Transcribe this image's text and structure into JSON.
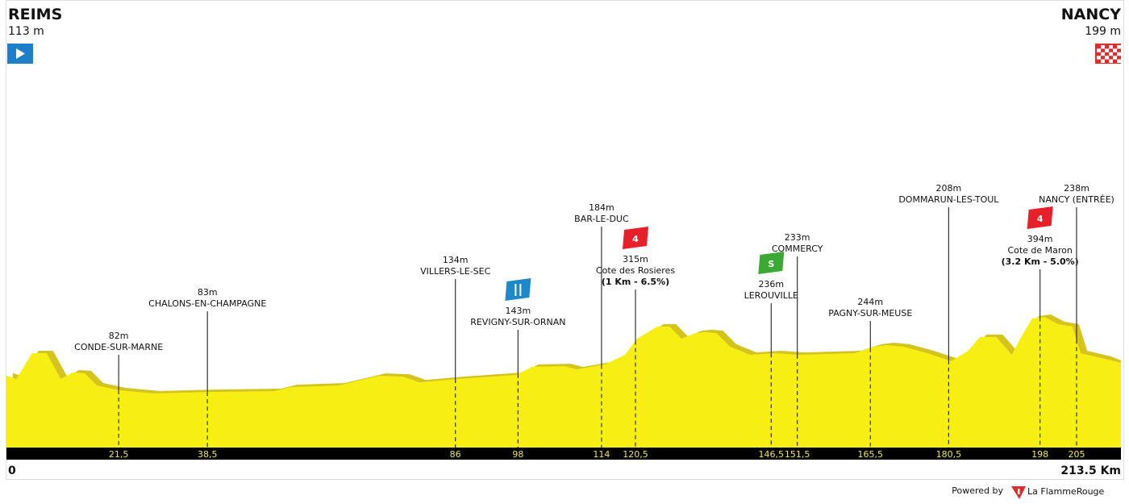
{
  "chart_data": {
    "type": "area",
    "color": "#f7ee14",
    "shadow_color": "#d6c41e",
    "xlim": [
      0,
      213.5
    ],
    "ylim": [
      -230,
      1450
    ],
    "start": {
      "name": "REIMS",
      "altitude": "113 m"
    },
    "finish": {
      "name": "NANCY",
      "altitude": "199 m"
    },
    "start_label": "0",
    "end_label": "213.5 Km",
    "profile": {
      "km": [
        0,
        1.9,
        4.9,
        7.7,
        10.4,
        12.7,
        15,
        17.3,
        21.6,
        28.1,
        38.9,
        51.3,
        54.4,
        63.6,
        71.4,
        76,
        79.1,
        86.4,
        97.6,
        100.7,
        106.9,
        109.2,
        114.6,
        118.5,
        120.8,
        124.7,
        127,
        129.3,
        132,
        134,
        136,
        138.6,
        142.4,
        147.1,
        151.7,
        162.5,
        166.4,
        168.7,
        171.8,
        176.4,
        181,
        184.2,
        186.5,
        189.6,
        192.6,
        194.2,
        196.5,
        198.8,
        201.5,
        204.2,
        205.8,
        210.4,
        213.5
      ],
      "elevation": [
        113,
        97,
        220,
        220,
        97,
        128,
        124,
        66,
        43,
        28,
        35,
        39,
        58,
        66,
        112,
        108,
        81,
        97,
        116,
        155,
        158,
        143,
        166,
        212,
        289,
        347,
        347,
        289,
        316,
        320,
        316,
        251,
        212,
        220,
        212,
        220,
        251,
        258,
        251,
        220,
        182,
        231,
        297,
        297,
        212,
        289,
        385,
        393,
        358,
        347,
        220,
        193,
        174
      ]
    },
    "waypoints": [
      {
        "km": 21.5,
        "km_label": "21,5",
        "altitude": "82m",
        "name": "CONDE-SUR-MARNE"
      },
      {
        "km": 38.5,
        "km_label": "38,5",
        "altitude": "83m",
        "name": "CHALONS-EN-CHAMPAGNE"
      },
      {
        "km": 86,
        "km_label": "86",
        "altitude": "134m",
        "name": "VILLERS-LE-SEC"
      },
      {
        "km": 98,
        "km_label": "98",
        "altitude": "143m",
        "name": "REVIGNY-SUR-ORNAN",
        "marker": {
          "kind": "feed"
        }
      },
      {
        "km": 114,
        "km_label": "114",
        "altitude": "184m",
        "name": "BAR-LE-DUC"
      },
      {
        "km": 120.5,
        "km_label": "120,5",
        "altitude": "315m",
        "name": "Cote des Rosieres",
        "detail": "(1 Km - 6.5%)",
        "marker": {
          "kind": "climb",
          "text": "4"
        }
      },
      {
        "km": 146.5,
        "km_label": "146,5",
        "altitude": "236m",
        "name": "LEROUVILLE",
        "marker": {
          "kind": "sprint",
          "text": "S"
        }
      },
      {
        "km": 151.5,
        "km_label": "151,5",
        "altitude": "233m",
        "name": "COMMERCY"
      },
      {
        "km": 165.5,
        "km_label": "165,5",
        "altitude": "244m",
        "name": "PAGNY-SUR-MEUSE"
      },
      {
        "km": 180.5,
        "km_label": "180,5",
        "altitude": "208m",
        "name": "DOMMARUN-LES-TOUL"
      },
      {
        "km": 198,
        "km_label": "198",
        "altitude": "394m",
        "name": "Cote de Maron",
        "detail": "(3.2 Km - 5.0%)",
        "marker": {
          "kind": "climb",
          "text": "4"
        }
      },
      {
        "km": 205,
        "km_label": "205",
        "altitude": "238m",
        "name": "NANCY (ENTRÉE)"
      }
    ]
  },
  "footer": {
    "powered_by": "Powered by",
    "brand": "La FlammeRouge"
  }
}
